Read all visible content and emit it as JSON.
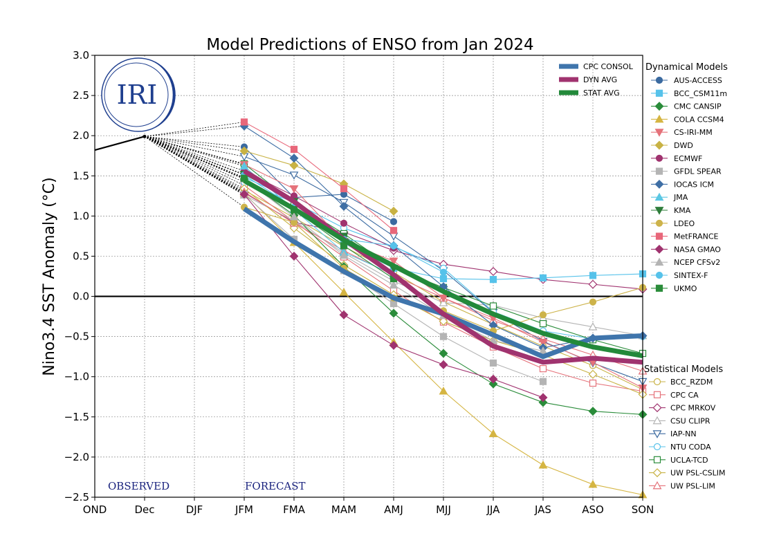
{
  "chart_data": {
    "type": "line",
    "title": "Model Predictions of ENSO from Jan 2024",
    "ylabel": "Nino3.4 SST Anomaly (°C)",
    "xlabel": "",
    "categories": [
      "OND",
      "Dec",
      "DJF",
      "JFM",
      "FMA",
      "MAM",
      "AMJ",
      "MJJ",
      "JJA",
      "JAS",
      "ASO",
      "SON"
    ],
    "ylim": [
      -2.5,
      3.0
    ],
    "yticks": [
      "−2.5",
      "−2.0",
      "−1.5",
      "−1.0",
      "−0.5",
      "0.0",
      "0.5",
      "1.0",
      "1.5",
      "2.0",
      "2.5",
      "3.0"
    ],
    "ytick_values": [
      -2.5,
      -2.0,
      -1.5,
      -1.0,
      -0.5,
      0.0,
      0.5,
      1.0,
      1.5,
      2.0,
      2.5,
      3.0
    ],
    "grid": true,
    "annotations": {
      "observed": "OBSERVED",
      "forecast": "FORECAST",
      "logo": "IRI"
    },
    "observed": {
      "x": [
        0,
        1
      ],
      "values": [
        1.82,
        1.99
      ]
    },
    "consensus": [
      {
        "name": "CPC CONSOL",
        "color": "#3f75ac",
        "start": 3,
        "values": [
          1.09,
          0.68,
          0.31,
          -0.02,
          -0.22,
          -0.48,
          -0.75,
          -0.52,
          -0.49
        ]
      },
      {
        "name": "DYN AVG",
        "color": "#a0336f",
        "start": 3,
        "values": [
          1.56,
          1.18,
          0.71,
          0.27,
          -0.22,
          -0.62,
          -0.82,
          -0.77,
          -0.82
        ]
      },
      {
        "name": "STAT AVG",
        "color": "#23893a",
        "start": 3,
        "values": [
          1.44,
          1.09,
          0.7,
          0.38,
          0.06,
          -0.22,
          -0.46,
          -0.63,
          -0.74
        ]
      }
    ],
    "legend_dynamical_title": "Dynamical Models",
    "legend_statistical_title": "Statistical Models",
    "dynamical": [
      {
        "name": "AUS-ACCESS",
        "color": "#3b6aa0",
        "marker": "circle",
        "start": 3,
        "values": [
          1.86,
          1.23,
          1.27,
          0.93
        ]
      },
      {
        "name": "BCC_CSM11m",
        "color": "#56c2ea",
        "marker": "square",
        "start": 3,
        "values": [
          1.48,
          1.21,
          0.66,
          0.35,
          0.22,
          0.21,
          0.23,
          0.26,
          0.28
        ]
      },
      {
        "name": "CMC CANSIP",
        "color": "#2a8c3a",
        "marker": "diamond",
        "start": 3,
        "values": [
          1.46,
          1.01,
          0.37,
          -0.21,
          -0.71,
          -1.09,
          -1.32,
          -1.43,
          -1.47
        ]
      },
      {
        "name": "COLA CCSM4",
        "color": "#d5b542",
        "marker": "triangle-up",
        "start": 3,
        "values": [
          1.28,
          0.67,
          0.05,
          -0.57,
          -1.18,
          -1.71,
          -2.1,
          -2.34,
          -2.47
        ]
      },
      {
        "name": "CS-IRI-MM",
        "color": "#e5727a",
        "marker": "triangle-down",
        "start": 3,
        "values": [
          1.64,
          1.34,
          0.68,
          0.44,
          -0.02,
          -0.27,
          -0.57,
          -0.82,
          -1.14
        ]
      },
      {
        "name": "DWD",
        "color": "#c8b244",
        "marker": "diamond",
        "start": 3,
        "values": [
          1.81,
          1.63,
          1.4,
          1.06
        ]
      },
      {
        "name": "ECMWF",
        "color": "#a0336f",
        "marker": "circle",
        "start": 3,
        "values": [
          1.56,
          1.25,
          0.91,
          0.6
        ]
      },
      {
        "name": "GFDL SPEAR",
        "color": "#b4b4b4",
        "marker": "square",
        "start": 3,
        "values": [
          1.27,
          0.71,
          0.32,
          -0.09,
          -0.5,
          -0.83,
          -1.06
        ]
      },
      {
        "name": "IOCAS ICM",
        "color": "#3f6fa5",
        "marker": "diamond",
        "start": 3,
        "values": [
          2.12,
          1.72,
          1.12,
          0.63,
          0.12,
          -0.36,
          -0.64,
          -0.52,
          -0.49
        ]
      },
      {
        "name": "JMA",
        "color": "#5bc7e3",
        "marker": "triangle-up",
        "start": 3,
        "values": [
          1.62,
          1.08,
          0.55,
          0.27
        ]
      },
      {
        "name": "KMA",
        "color": "#2e7d3a",
        "marker": "triangle-down",
        "start": 3,
        "values": [
          1.52,
          1.18,
          0.75,
          0.35
        ]
      },
      {
        "name": "LDEO",
        "color": "#cdb34a",
        "marker": "circle",
        "start": 3,
        "values": [
          1.11,
          0.92,
          0.35,
          -0.02,
          -0.18,
          -0.43,
          -0.23,
          -0.07,
          0.11
        ]
      },
      {
        "name": "MetFRANCE",
        "color": "#e8677a",
        "marker": "square",
        "start": 3,
        "values": [
          2.17,
          1.83,
          1.34,
          0.82
        ]
      },
      {
        "name": "NASA GMAO",
        "color": "#a0336f",
        "marker": "diamond",
        "start": 3,
        "values": [
          1.27,
          0.5,
          -0.23,
          -0.61,
          -0.85,
          -1.03,
          -1.26
        ]
      },
      {
        "name": "NCEP CFSv2",
        "color": "#b4b4b4",
        "marker": "triangle-up",
        "start": 3,
        "values": [
          1.46,
          0.99,
          0.51,
          0.14,
          -0.24,
          -0.55,
          -0.68
        ]
      },
      {
        "name": "SINTEX-F",
        "color": "#56c2ea",
        "marker": "circle",
        "start": 3,
        "values": [
          1.51,
          1.11,
          0.71,
          0.63,
          0.3
        ]
      },
      {
        "name": "UKMO",
        "color": "#2a8c3a",
        "marker": "square",
        "start": 3,
        "values": [
          1.47,
          1.08,
          0.63,
          0.22
        ]
      }
    ],
    "statistical": [
      {
        "name": "BCC_RZDM",
        "color": "#c8b244",
        "marker": "circle-open",
        "start": 3,
        "values": [
          1.32,
          0.98,
          0.62,
          0.3,
          -0.07,
          -0.35,
          -0.62,
          -0.86,
          -1.16
        ]
      },
      {
        "name": "CPC CA",
        "color": "#e5727a",
        "marker": "square-open",
        "start": 3,
        "values": [
          1.38,
          0.93,
          0.49,
          0.07,
          -0.32,
          -0.63,
          -0.9,
          -1.08,
          -1.18
        ]
      },
      {
        "name": "CPC MRKOV",
        "color": "#a0336f",
        "marker": "diamond-open",
        "start": 3,
        "values": [
          1.29,
          0.92,
          0.8,
          0.57,
          0.4,
          0.31,
          0.21,
          0.15,
          0.09
        ]
      },
      {
        "name": "CSU CLIPR",
        "color": "#b4b4b4",
        "marker": "triangle-up-open",
        "start": 3,
        "values": [
          1.26,
          0.94,
          0.54,
          0.19,
          -0.08,
          -0.11,
          -0.27,
          -0.38,
          -0.49
        ]
      },
      {
        "name": "IAP-NN",
        "color": "#3b6aa0",
        "marker": "triangle-down-open",
        "start": 3,
        "values": [
          1.74,
          1.51,
          1.17,
          0.75,
          0.32,
          -0.2,
          -0.56,
          -0.83,
          -1.06
        ]
      },
      {
        "name": "NTU CODA",
        "color": "#56c2ea",
        "marker": "circle-open",
        "start": 3,
        "values": [
          1.42,
          1.17,
          0.85,
          0.62,
          0.35,
          -0.19,
          -0.43,
          -0.53,
          -0.5
        ]
      },
      {
        "name": "UCLA-TCD",
        "color": "#2a8c3a",
        "marker": "square-open",
        "start": 3,
        "values": [
          1.65,
          1.16,
          0.78,
          0.35,
          0.11,
          -0.12,
          -0.34,
          -0.54,
          -0.71
        ]
      },
      {
        "name": "UW PSL-CSLIM",
        "color": "#c8b244",
        "marker": "diamond-open",
        "start": 3,
        "values": [
          1.34,
          0.85,
          0.39,
          0.02,
          -0.31,
          -0.55,
          -0.73,
          -0.97,
          -1.22
        ]
      },
      {
        "name": "UW PSL-LIM",
        "color": "#e5727a",
        "marker": "triangle-up-open",
        "start": 3,
        "values": [
          1.3,
          0.91,
          0.57,
          0.26,
          -0.02,
          -0.3,
          -0.53,
          -0.73,
          -0.93
        ]
      }
    ]
  }
}
